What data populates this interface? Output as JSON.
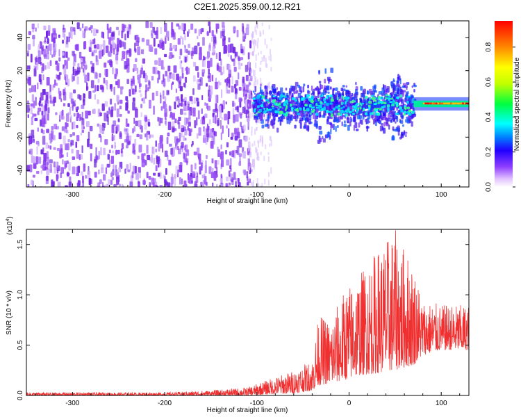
{
  "title": "C2E1.2025.359.00.12.R21",
  "chart_data": [
    {
      "type": "heatmap",
      "xlabel": "Height of straight line (km)",
      "ylabel": "Frequency (Hz)",
      "xlim": [
        -350,
        130
      ],
      "ylim": [
        -50,
        50
      ],
      "x_ticks": [
        "-300",
        "-200",
        "-100",
        "0",
        "100"
      ],
      "y_ticks": [
        "-40",
        "-20",
        "0",
        "20",
        "40"
      ],
      "colorbar": {
        "label": "Normalized spectral amplitude",
        "range": [
          0.0,
          0.95
        ],
        "ticks": [
          "0.0",
          "0.2",
          "0.4",
          "0.6",
          "0.8"
        ],
        "colors": [
          "#ffffff",
          "#e0c0ff",
          "#9040ff",
          "#2000ff",
          "#0080ff",
          "#00ffff",
          "#00ff40",
          "#c0ff00",
          "#ffff00",
          "#ff8000",
          "#ff0000"
        ]
      },
      "regions": [
        {
          "x_range": [
            -350,
            -105
          ],
          "freq_range": [
            -50,
            50
          ],
          "amplitude": "0.0-0.15",
          "description_color": "#8a3cf0"
        },
        {
          "x_range": [
            -105,
            70
          ],
          "freq_range": [
            -15,
            15
          ],
          "amplitude": "0.1-0.4",
          "description_color": "#1e5cff"
        },
        {
          "x_range": [
            70,
            130
          ],
          "freq_range": [
            -3,
            3
          ],
          "amplitude": "0.6-0.95",
          "description_color": "#ff3000"
        }
      ]
    },
    {
      "type": "line",
      "xlabel": "Height of straight line (km)",
      "ylabel": "SNR (10 * v/v)",
      "y_scale_label": "(x10",
      "y_scale_exp": "4",
      "y_scale_close": ")",
      "xlim": [
        -350,
        130
      ],
      "ylim": [
        0,
        1.65
      ],
      "x_ticks": [
        "-300",
        "-200",
        "-100",
        "0",
        "100"
      ],
      "y_ticks": [
        "0.0",
        "0.5",
        "1.0",
        "1.5"
      ],
      "color": "#f03030",
      "envelope": [
        {
          "x": -350,
          "base": 0.0,
          "peak": 0.03
        },
        {
          "x": -200,
          "base": 0.0,
          "peak": 0.03
        },
        {
          "x": -150,
          "base": 0.0,
          "peak": 0.05
        },
        {
          "x": -110,
          "base": 0.0,
          "peak": 0.08
        },
        {
          "x": -90,
          "base": 0.01,
          "peak": 0.15
        },
        {
          "x": -60,
          "base": 0.02,
          "peak": 0.25
        },
        {
          "x": -40,
          "base": 0.05,
          "peak": 0.35
        },
        {
          "x": -33,
          "base": 0.1,
          "peak": 0.8
        },
        {
          "x": -20,
          "base": 0.12,
          "peak": 0.75
        },
        {
          "x": -5,
          "base": 0.15,
          "peak": 1.05
        },
        {
          "x": 10,
          "base": 0.2,
          "peak": 1.2
        },
        {
          "x": 30,
          "base": 0.22,
          "peak": 1.45
        },
        {
          "x": 50,
          "base": 0.25,
          "peak": 1.65
        },
        {
          "x": 70,
          "base": 0.3,
          "peak": 1.3
        },
        {
          "x": 80,
          "base": 0.4,
          "peak": 0.95
        },
        {
          "x": 100,
          "base": 0.45,
          "peak": 0.9
        },
        {
          "x": 130,
          "base": 0.45,
          "peak": 0.9
        }
      ]
    }
  ]
}
